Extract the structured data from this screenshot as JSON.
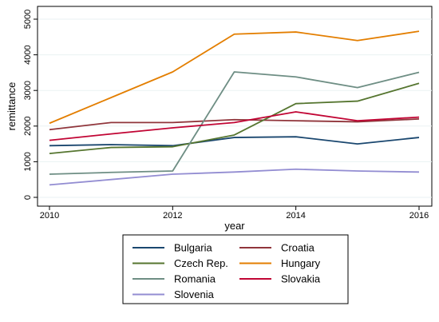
{
  "chart_data": {
    "type": "line",
    "xlabel": "year",
    "ylabel": "remittance",
    "x_ticks": [
      "2010",
      "2012",
      "2014",
      "2016"
    ],
    "y_ticks": [
      "0",
      "1000",
      "2000",
      "3000",
      "4000",
      "5000"
    ],
    "xlim": [
      2010,
      2016
    ],
    "ylim": [
      0,
      5000
    ],
    "grid": "horizontal",
    "legend_position": "bottom",
    "x": [
      2010,
      2011,
      2012,
      2013,
      2014,
      2015,
      2016
    ],
    "series": [
      {
        "name": "Bulgaria",
        "color": "#1a476f",
        "values": [
          1450,
          1480,
          1450,
          1680,
          1700,
          1500,
          1680
        ]
      },
      {
        "name": "Croatia",
        "color": "#90353b",
        "values": [
          1900,
          2100,
          2100,
          2180,
          2150,
          2120,
          2200
        ]
      },
      {
        "name": "Czech Rep.",
        "color": "#55752f",
        "values": [
          1230,
          1400,
          1420,
          1750,
          2630,
          2700,
          3200
        ]
      },
      {
        "name": "Hungary",
        "color": "#e37e00",
        "values": [
          2080,
          2800,
          3520,
          4580,
          4640,
          4400,
          4660
        ]
      },
      {
        "name": "Romania",
        "color": "#6e8e84",
        "values": [
          650,
          700,
          740,
          3520,
          3380,
          3080,
          3510
        ]
      },
      {
        "name": "Slovakia",
        "color": "#c10534",
        "values": [
          1600,
          1780,
          1950,
          2100,
          2400,
          2150,
          2250
        ]
      },
      {
        "name": "Slovenia",
        "color": "#938dd2",
        "values": [
          350,
          500,
          650,
          710,
          790,
          740,
          710
        ]
      }
    ]
  }
}
